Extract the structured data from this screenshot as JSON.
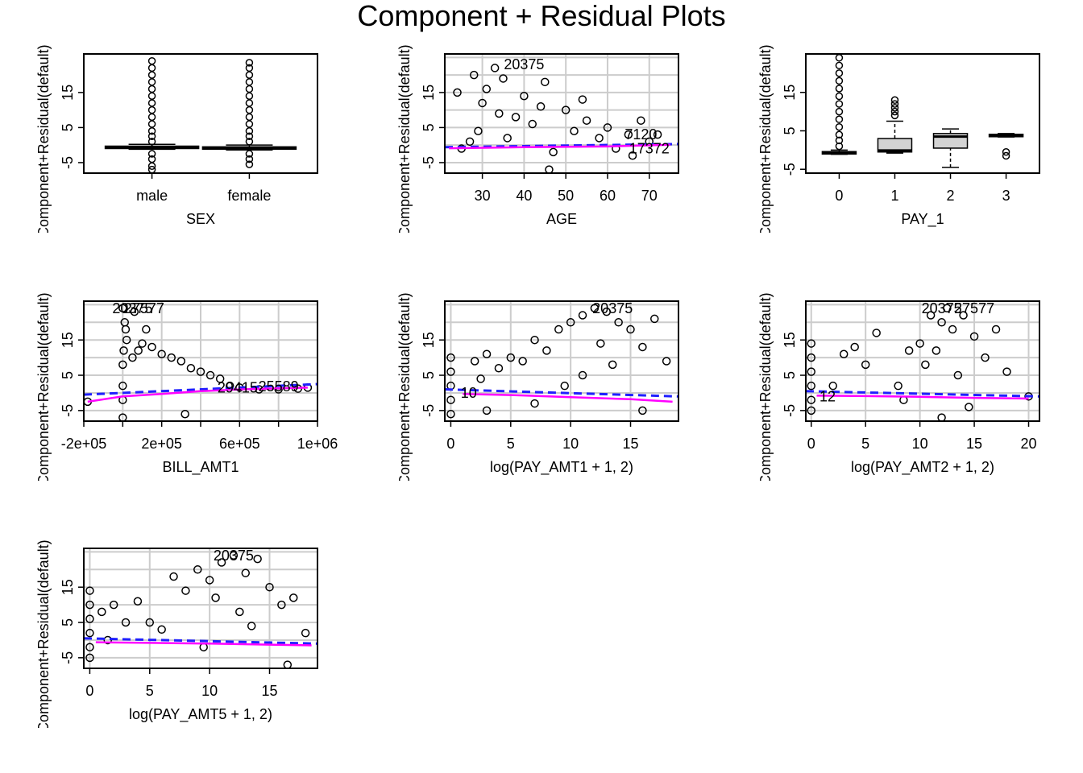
{
  "title": "Component + Residual Plots",
  "colors": {
    "grid": "#cccccc",
    "points": "#000000",
    "linear_fit": "#1f1fff",
    "smooth_fit": "#ff00ff",
    "box_fill": "#d3d3d3"
  },
  "chart_data": [
    {
      "type": "box",
      "xlabel": "SEX",
      "ylabel": "Component+Residual(default)",
      "categories": [
        "male",
        "female"
      ],
      "ylim": [
        -8,
        26
      ],
      "yticks": [
        -5,
        5,
        15
      ],
      "grid": false,
      "boxes": [
        {
          "category": "male",
          "q1": -0.9,
          "median": -0.6,
          "q3": -0.3,
          "whisker_low": -1.2,
          "whisker_high": 0.2,
          "outliers": [
            1,
            2.5,
            4,
            6,
            8,
            10,
            12,
            14,
            16,
            18,
            20,
            22,
            24,
            -2.5,
            -4,
            -6,
            -7
          ]
        },
        {
          "category": "female",
          "q1": -1.1,
          "median": -0.8,
          "q3": -0.5,
          "whisker_low": -1.4,
          "whisker_high": 0,
          "outliers": [
            1,
            2.5,
            4,
            6,
            8,
            10,
            12,
            14,
            16,
            18,
            20,
            22,
            23.5,
            -2.5,
            -4,
            -5.5
          ]
        }
      ]
    },
    {
      "type": "scatter",
      "xlabel": "AGE",
      "ylabel": "Component+Residual(default)",
      "xlim": [
        21,
        77
      ],
      "ylim": [
        -8,
        26
      ],
      "xticks": [
        30,
        40,
        50,
        60,
        70
      ],
      "yticks": [
        -5,
        5,
        15
      ],
      "grid": true,
      "linear_fit": [
        [
          21,
          -0.6
        ],
        [
          77,
          0.3
        ]
      ],
      "smooth_fit": [
        [
          22,
          -0.9
        ],
        [
          40,
          -0.6
        ],
        [
          60,
          -0.4
        ],
        [
          75,
          0.1
        ]
      ],
      "points": [
        [
          25,
          -1
        ],
        [
          27,
          1
        ],
        [
          29,
          4
        ],
        [
          30,
          12
        ],
        [
          31,
          16
        ],
        [
          33,
          22
        ],
        [
          35,
          19
        ],
        [
          36,
          2
        ],
        [
          38,
          8
        ],
        [
          40,
          14
        ],
        [
          42,
          6
        ],
        [
          45,
          18
        ],
        [
          47,
          -2
        ],
        [
          50,
          10
        ],
        [
          52,
          4
        ],
        [
          55,
          7
        ],
        [
          58,
          2
        ],
        [
          60,
          5
        ],
        [
          62,
          -1
        ],
        [
          65,
          3
        ],
        [
          68,
          7
        ],
        [
          70,
          1
        ],
        [
          72,
          3
        ],
        [
          24,
          15
        ],
        [
          28,
          20
        ],
        [
          34,
          9
        ],
        [
          44,
          11
        ],
        [
          46,
          -7
        ],
        [
          54,
          13
        ],
        [
          66,
          -3
        ]
      ],
      "labels": [
        {
          "text": "20375",
          "x": 40,
          "y": 23
        },
        {
          "text": "7120",
          "x": 68,
          "y": 3
        },
        {
          "text": "17372",
          "x": 70,
          "y": -1
        }
      ]
    },
    {
      "type": "box",
      "xlabel": "PAY_1",
      "ylabel": "Component+Residual(default)",
      "categories": [
        "0",
        "1",
        "2",
        "3"
      ],
      "ylim": [
        -6,
        25
      ],
      "yticks": [
        -5,
        5,
        15
      ],
      "grid": false,
      "boxes": [
        {
          "category": "0",
          "q1": -0.9,
          "median": -0.7,
          "q3": -0.4,
          "whisker_low": -1.1,
          "whisker_high": 0,
          "outliers": [
            1,
            2.5,
            4,
            6,
            8,
            10,
            12,
            14,
            16,
            18,
            20,
            22,
            24
          ]
        },
        {
          "category": "1",
          "q1": -0.5,
          "median": -0.1,
          "q3": 3,
          "whisker_low": -0.8,
          "whisker_high": 7.5,
          "outliers": [
            9,
            10,
            11,
            12,
            13
          ]
        },
        {
          "category": "2",
          "q1": 0.5,
          "median": 3.5,
          "q3": 4.3,
          "whisker_low": -4.5,
          "whisker_high": 5.5,
          "outliers": []
        },
        {
          "category": "3",
          "q1": 3.6,
          "median": 3.9,
          "q3": 4.1,
          "whisker_low": 3.4,
          "whisker_high": 4.3,
          "outliers": [
            -0.5,
            -1.5
          ]
        }
      ]
    },
    {
      "type": "scatter",
      "xlabel": "BILL_AMT1",
      "ylabel": "Component+Residual(default)",
      "xlim": [
        -200000,
        1000000
      ],
      "ylim": [
        -8,
        26
      ],
      "xticks": [
        -200000,
        0,
        200000,
        400000,
        600000,
        800000,
        1000000
      ],
      "xtick_labels": [
        "-2e+05",
        "",
        "2e+05",
        "",
        "6e+05",
        "",
        "1e+06"
      ],
      "yticks": [
        -5,
        5,
        15
      ],
      "grid": true,
      "linear_fit": [
        [
          -200000,
          -0.5
        ],
        [
          1000000,
          2.5
        ]
      ],
      "smooth_fit": [
        [
          -180000,
          -2.5
        ],
        [
          0,
          -1
        ],
        [
          200000,
          -0.3
        ],
        [
          400000,
          0.5
        ],
        [
          600000,
          1
        ],
        [
          950000,
          1.5
        ]
      ],
      "points": [
        [
          0,
          24
        ],
        [
          10000,
          20
        ],
        [
          15000,
          18
        ],
        [
          20000,
          15
        ],
        [
          5000,
          12
        ],
        [
          0,
          8
        ],
        [
          0,
          2
        ],
        [
          0,
          -2
        ],
        [
          0,
          -7
        ],
        [
          50000,
          10
        ],
        [
          80000,
          12
        ],
        [
          100000,
          14
        ],
        [
          150000,
          13
        ],
        [
          200000,
          11
        ],
        [
          250000,
          10
        ],
        [
          300000,
          9
        ],
        [
          350000,
          7
        ],
        [
          400000,
          6
        ],
        [
          450000,
          5
        ],
        [
          500000,
          4
        ],
        [
          550000,
          2
        ],
        [
          600000,
          1.5
        ],
        [
          700000,
          1
        ],
        [
          800000,
          1
        ],
        [
          900000,
          1.2
        ],
        [
          950000,
          1.5
        ],
        [
          -180000,
          -2.5
        ],
        [
          320000,
          -6
        ],
        [
          120000,
          18
        ],
        [
          60000,
          23
        ]
      ],
      "labels": [
        {
          "text": "20375",
          "x": 50000,
          "y": 24
        },
        {
          "text": "27577",
          "x": 110000,
          "y": 24
        },
        {
          "text": "29415",
          "x": 590000,
          "y": 1.5
        },
        {
          "text": "25589",
          "x": 800000,
          "y": 1.8
        }
      ]
    },
    {
      "type": "scatter",
      "xlabel": "log(PAY_AMT1 + 1, 2)",
      "ylabel": "Component+Residual(default)",
      "xlim": [
        -0.5,
        19
      ],
      "ylim": [
        -8,
        26
      ],
      "xticks": [
        0,
        5,
        10,
        15
      ],
      "yticks": [
        -5,
        5,
        15
      ],
      "grid": true,
      "linear_fit": [
        [
          -0.5,
          1
        ],
        [
          19,
          -1
        ]
      ],
      "smooth_fit": [
        [
          1,
          -0.3
        ],
        [
          5,
          -0.6
        ],
        [
          10,
          -1.2
        ],
        [
          15,
          -1.8
        ],
        [
          18.5,
          -2.5
        ]
      ],
      "points": [
        [
          0,
          10
        ],
        [
          0,
          6
        ],
        [
          0,
          2
        ],
        [
          0,
          -2
        ],
        [
          0,
          -6
        ],
        [
          2,
          9
        ],
        [
          2.5,
          4
        ],
        [
          3,
          11
        ],
        [
          4,
          7
        ],
        [
          5,
          10
        ],
        [
          6,
          9
        ],
        [
          7,
          15
        ],
        [
          8,
          12
        ],
        [
          9,
          18
        ],
        [
          10,
          20
        ],
        [
          11,
          22
        ],
        [
          12,
          24
        ],
        [
          13,
          23
        ],
        [
          14,
          20
        ],
        [
          15,
          18
        ],
        [
          16,
          13
        ],
        [
          17,
          21
        ],
        [
          18,
          9
        ],
        [
          11,
          5
        ],
        [
          12.5,
          14
        ],
        [
          13.5,
          8
        ],
        [
          9.5,
          2
        ],
        [
          3,
          -5
        ],
        [
          7,
          -3
        ],
        [
          16,
          -5
        ]
      ],
      "labels": [
        {
          "text": "20375",
          "x": 13.5,
          "y": 24
        },
        {
          "text": "10",
          "x": 1.5,
          "y": 0
        }
      ]
    },
    {
      "type": "scatter",
      "xlabel": "log(PAY_AMT2 + 1, 2)",
      "ylabel": "Component+Residual(default)",
      "xlim": [
        -0.5,
        21
      ],
      "ylim": [
        -8,
        26
      ],
      "xticks": [
        0,
        5,
        10,
        15,
        20
      ],
      "yticks": [
        -5,
        5,
        15
      ],
      "grid": true,
      "linear_fit": [
        [
          -0.5,
          0.5
        ],
        [
          21,
          -1
        ]
      ],
      "smooth_fit": [
        [
          0.5,
          -0.8
        ],
        [
          5,
          -0.9
        ],
        [
          10,
          -1.1
        ],
        [
          15,
          -1.4
        ],
        [
          20,
          -1.6
        ]
      ],
      "points": [
        [
          0,
          14
        ],
        [
          0,
          10
        ],
        [
          0,
          6
        ],
        [
          0,
          2
        ],
        [
          0,
          -2
        ],
        [
          0,
          -5
        ],
        [
          2,
          2
        ],
        [
          3,
          11
        ],
        [
          4,
          13
        ],
        [
          5,
          8
        ],
        [
          6,
          17
        ],
        [
          8,
          2
        ],
        [
          9,
          12
        ],
        [
          10,
          14
        ],
        [
          11,
          22
        ],
        [
          12,
          20
        ],
        [
          12.5,
          24
        ],
        [
          13,
          18
        ],
        [
          14,
          22
        ],
        [
          15,
          16
        ],
        [
          16,
          10
        ],
        [
          17,
          18
        ],
        [
          18,
          6
        ],
        [
          20,
          -1
        ],
        [
          10.5,
          8
        ],
        [
          13.5,
          5
        ],
        [
          11.5,
          12
        ],
        [
          8.5,
          -2
        ],
        [
          14.5,
          -4
        ],
        [
          12,
          -7
        ]
      ],
      "labels": [
        {
          "text": "20375",
          "x": 12,
          "y": 24
        },
        {
          "text": "27577",
          "x": 15,
          "y": 24
        },
        {
          "text": "12",
          "x": 1.5,
          "y": -1
        }
      ]
    },
    {
      "type": "scatter",
      "xlabel": "log(PAY_AMT5 + 1, 2)",
      "ylabel": "Component+Residual(default)",
      "xlim": [
        -0.5,
        19
      ],
      "ylim": [
        -8,
        26
      ],
      "xticks": [
        0,
        5,
        10,
        15
      ],
      "yticks": [
        -5,
        5,
        15
      ],
      "grid": true,
      "linear_fit": [
        [
          -0.5,
          0.5
        ],
        [
          19,
          -1
        ]
      ],
      "smooth_fit": [
        [
          0.5,
          -0.6
        ],
        [
          5,
          -0.8
        ],
        [
          10,
          -1
        ],
        [
          15,
          -1.3
        ],
        [
          18.5,
          -1.5
        ]
      ],
      "points": [
        [
          0,
          14
        ],
        [
          0,
          10
        ],
        [
          0,
          6
        ],
        [
          0,
          2
        ],
        [
          0,
          -2
        ],
        [
          0,
          -5
        ],
        [
          1,
          8
        ],
        [
          1.5,
          0
        ],
        [
          2,
          10
        ],
        [
          3,
          5
        ],
        [
          4,
          11
        ],
        [
          5,
          5
        ],
        [
          6,
          3
        ],
        [
          7,
          18
        ],
        [
          8,
          14
        ],
        [
          9,
          20
        ],
        [
          10,
          17
        ],
        [
          11,
          22
        ],
        [
          12,
          24
        ],
        [
          13,
          19
        ],
        [
          14,
          23
        ],
        [
          15,
          15
        ],
        [
          16,
          10
        ],
        [
          17,
          12
        ],
        [
          18,
          2
        ],
        [
          16.5,
          -7
        ],
        [
          12.5,
          8
        ],
        [
          10.5,
          12
        ],
        [
          13.5,
          4
        ],
        [
          9.5,
          -2
        ]
      ],
      "labels": [
        {
          "text": "20375",
          "x": 12,
          "y": 24
        }
      ]
    }
  ]
}
